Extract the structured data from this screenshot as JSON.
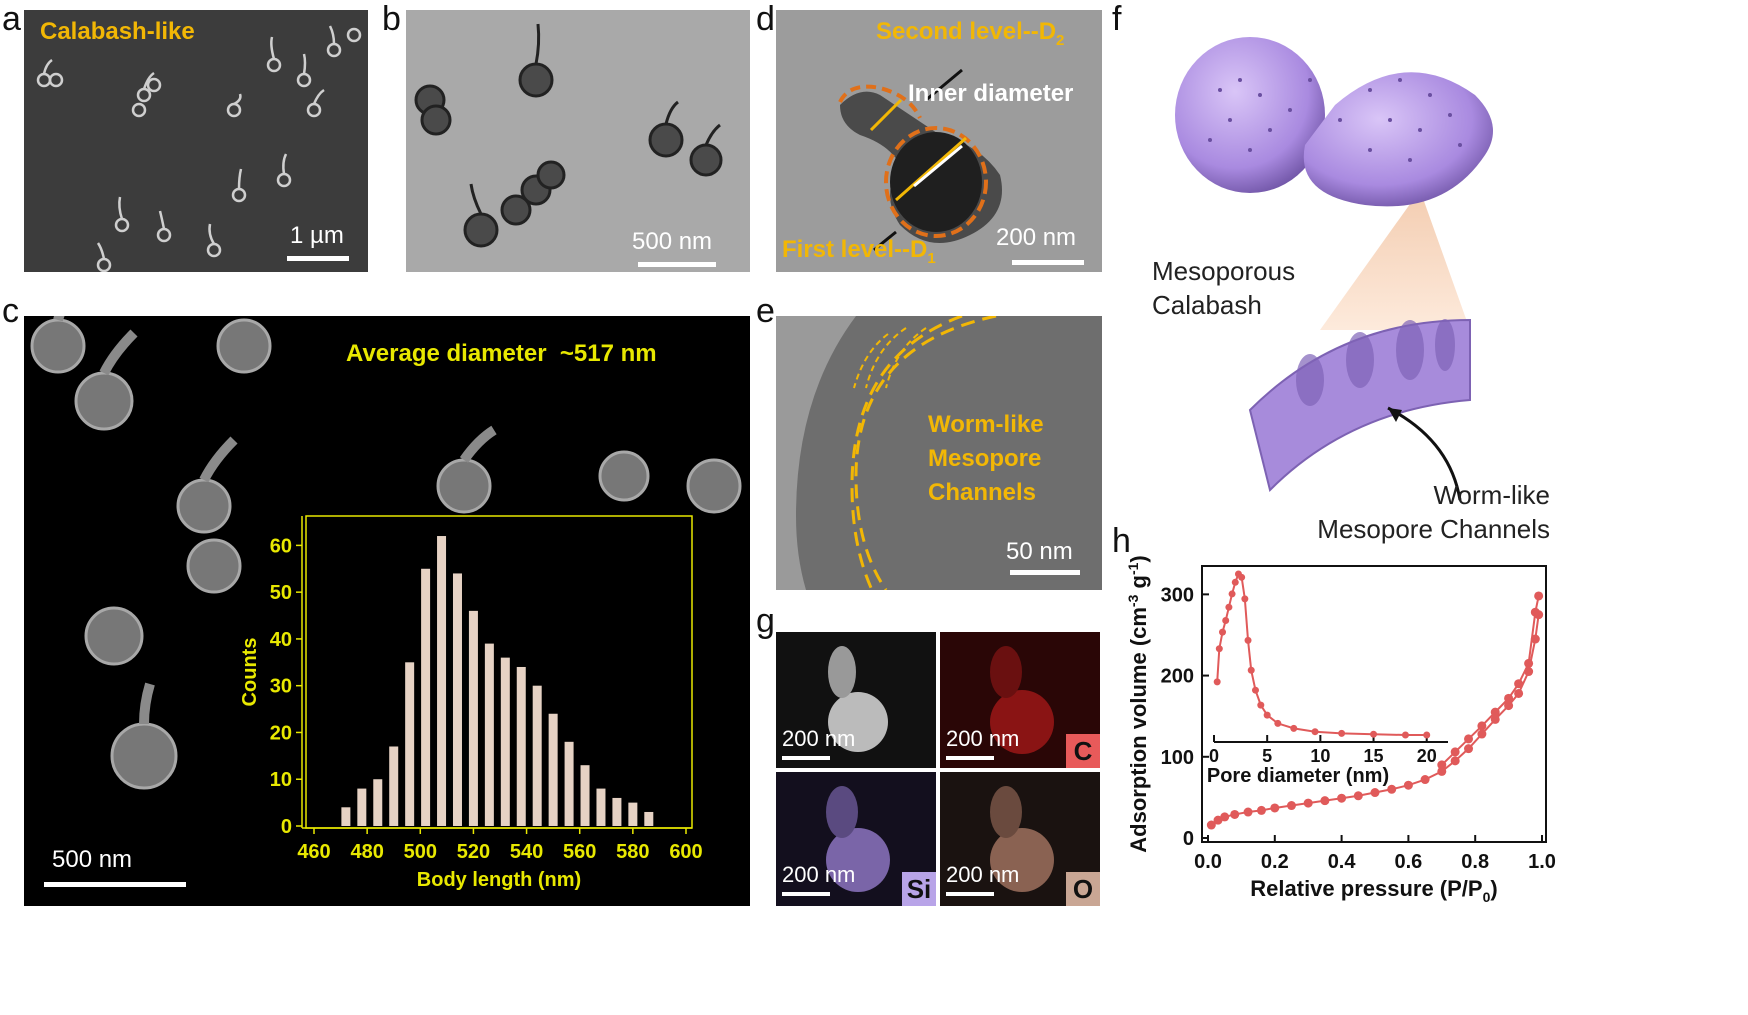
{
  "panels": {
    "a": {
      "letter": "a",
      "title": "Calabash-like",
      "scale": "1 µm"
    },
    "b": {
      "letter": "b",
      "scale": "500 nm"
    },
    "c": {
      "letter": "c",
      "title": "Average diameter  ~517 nm",
      "scale": "500 nm"
    },
    "d": {
      "letter": "d",
      "second_level": "Second level--D",
      "second_sub": "2",
      "inner": "Inner diameter",
      "first_level": "First level--D",
      "first_sub": "1",
      "scale": "200 nm"
    },
    "e": {
      "letter": "e",
      "label_line1": "Worm-like",
      "label_line2": "Mesopore",
      "label_line3": "Channels",
      "scale": "50 nm"
    },
    "f": {
      "letter": "f",
      "calabash_line1": "Mesoporous",
      "calabash_line2": "Calabash",
      "channels_line1": "Worm-like",
      "channels_line2": "Mesopore Channels"
    },
    "g": {
      "letter": "g",
      "scale": "200 nm",
      "elements": [
        "C",
        "Si",
        "O"
      ],
      "colors": {
        "C": "#e85a5a",
        "Si": "#b8a4e8",
        "O": "#c9a694"
      }
    },
    "h": {
      "letter": "h"
    }
  },
  "chart_data": [
    {
      "type": "bar",
      "panel": "c-inset",
      "xlabel": "Body length (nm)",
      "ylabel": "Counts",
      "xlim": [
        460,
        600
      ],
      "ylim": [
        0,
        65
      ],
      "xticks": [
        "460",
        "480",
        "500",
        "520",
        "540",
        "560",
        "580",
        "600"
      ],
      "yticks": [
        "0",
        "10",
        "20",
        "30",
        "40",
        "50",
        "60"
      ],
      "x": [
        472,
        478,
        484,
        490,
        496,
        502,
        508,
        514,
        520,
        526,
        532,
        538,
        544,
        550,
        556,
        562,
        568,
        574,
        580,
        586
      ],
      "values": [
        4,
        8,
        10,
        17,
        35,
        55,
        62,
        54,
        46,
        39,
        36,
        34,
        30,
        24,
        18,
        13,
        8,
        6,
        5,
        3
      ],
      "bar_color": "#e6d2c4",
      "frame_color": "#e8e800"
    },
    {
      "type": "line",
      "panel": "h",
      "xlabel": "Relative pressure (P/P",
      "xlabel_sub": "0",
      "xlabel_end": ")",
      "ylabel": "Adsorption volume (cm",
      "ylabel_sup": "-3",
      "ylabel_mid": " g",
      "ylabel_sup2": "-1",
      "ylabel_end": ")",
      "xlim": [
        0,
        1.0
      ],
      "ylim": [
        0,
        330
      ],
      "xticks": [
        "0.0",
        "0.2",
        "0.4",
        "0.6",
        "0.8",
        "1.0"
      ],
      "yticks": [
        "0",
        "100",
        "200",
        "300"
      ],
      "color": "#e05a5a",
      "series": [
        {
          "x": [
            0.01,
            0.03,
            0.05,
            0.08,
            0.12,
            0.16,
            0.2,
            0.25,
            0.3,
            0.35,
            0.4,
            0.45,
            0.5,
            0.55,
            0.6,
            0.65,
            0.7,
            0.74,
            0.78,
            0.82,
            0.86,
            0.9,
            0.93,
            0.96,
            0.98,
            0.99
          ],
          "y": [
            16,
            22,
            26,
            29,
            32,
            34,
            37,
            40,
            43,
            46,
            49,
            52,
            56,
            60,
            65,
            72,
            82,
            95,
            110,
            128,
            146,
            163,
            178,
            205,
            245,
            275
          ]
        },
        {
          "x": [
            0.99,
            0.98,
            0.96,
            0.93,
            0.9,
            0.86,
            0.82,
            0.78,
            0.74,
            0.7
          ],
          "y": [
            298,
            278,
            215,
            190,
            172,
            155,
            138,
            122,
            106,
            90
          ]
        }
      ]
    },
    {
      "type": "line",
      "panel": "h-inset",
      "xlabel": "Pore diameter (nm)",
      "xlim": [
        0,
        22
      ],
      "xticks": [
        "0",
        "5",
        "10",
        "15",
        "20"
      ],
      "color": "#e05a5a",
      "series": [
        {
          "x": [
            0.3,
            0.5,
            0.8,
            1.1,
            1.4,
            1.7,
            2.0,
            2.3,
            2.6,
            2.9,
            3.2,
            3.5,
            3.9,
            4.4,
            5.0,
            6.0,
            7.5,
            9.5,
            12,
            15,
            18,
            20
          ],
          "y": [
            0.35,
            0.55,
            0.65,
            0.72,
            0.8,
            0.88,
            0.95,
            1.0,
            0.98,
            0.85,
            0.6,
            0.42,
            0.3,
            0.21,
            0.15,
            0.1,
            0.07,
            0.05,
            0.04,
            0.035,
            0.03,
            0.03
          ]
        }
      ]
    }
  ]
}
